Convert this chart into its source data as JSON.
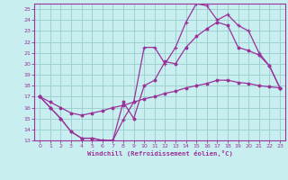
{
  "xlabel": "Windchill (Refroidissement éolien,°C)",
  "background_color": "#c8eef0",
  "grid_color": "#99cccc",
  "line_color": "#993399",
  "xlim": [
    -0.5,
    23.5
  ],
  "ylim": [
    13,
    25.5
  ],
  "xticks": [
    0,
    1,
    2,
    3,
    4,
    5,
    6,
    7,
    8,
    9,
    10,
    11,
    12,
    13,
    14,
    15,
    16,
    17,
    18,
    19,
    20,
    21,
    22,
    23
  ],
  "yticks": [
    13,
    14,
    15,
    16,
    17,
    18,
    19,
    20,
    21,
    22,
    23,
    24,
    25
  ],
  "line1_x": [
    0,
    1,
    2,
    3,
    4,
    5,
    6,
    7,
    8,
    9,
    10,
    11,
    12,
    13,
    14,
    15,
    16,
    17,
    18,
    19,
    20,
    21,
    22,
    23
  ],
  "line1_y": [
    17,
    16,
    15,
    13.8,
    13.2,
    13.2,
    13.0,
    13.0,
    14.9,
    16.5,
    21.5,
    21.5,
    20.0,
    21.5,
    23.8,
    25.5,
    25.3,
    24.0,
    24.5,
    23.5,
    23.0,
    21.0,
    19.8,
    17.8
  ],
  "line2_x": [
    0,
    1,
    2,
    3,
    4,
    5,
    6,
    7,
    8,
    9,
    10,
    11,
    12,
    13,
    14,
    15,
    16,
    17,
    18,
    19,
    20,
    21,
    22,
    23
  ],
  "line2_y": [
    17,
    16,
    15,
    13.8,
    13.2,
    13.2,
    13.0,
    13.0,
    16.5,
    15.0,
    18.0,
    18.5,
    20.2,
    20.0,
    21.5,
    22.5,
    23.2,
    23.8,
    23.5,
    21.5,
    21.2,
    20.8,
    19.8,
    17.8
  ],
  "line3_x": [
    0,
    1,
    2,
    3,
    4,
    5,
    6,
    7,
    8,
    9,
    10,
    11,
    12,
    13,
    14,
    15,
    16,
    17,
    18,
    19,
    20,
    21,
    22,
    23
  ],
  "line3_y": [
    17,
    16.5,
    16.0,
    15.5,
    15.3,
    15.5,
    15.7,
    16.0,
    16.2,
    16.5,
    16.8,
    17.0,
    17.3,
    17.5,
    17.8,
    18.0,
    18.2,
    18.5,
    18.5,
    18.3,
    18.2,
    18.0,
    17.9,
    17.8
  ]
}
